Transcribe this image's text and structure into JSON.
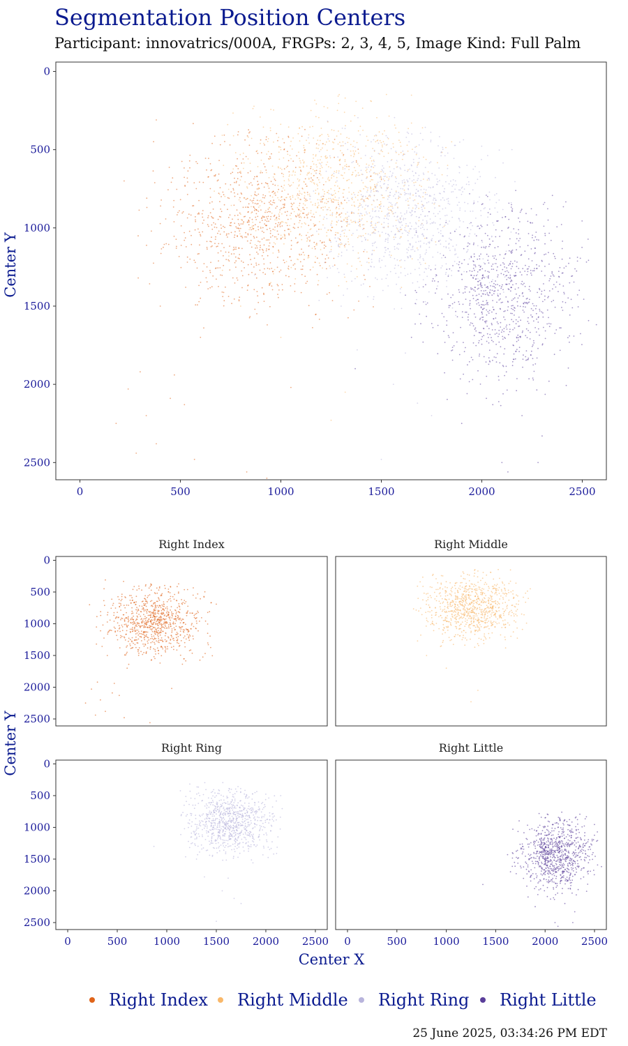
{
  "header": {
    "title": "Segmentation Position Centers",
    "subtitle": "Participant: innovatrics/000A, FRGPs: 2, 3, 4, 5, Image Kind: Full Palm"
  },
  "footer": {
    "timestamp": "25 June 2025, 03:34:26 PM EDT"
  },
  "colors": {
    "axis_text": "#1a1a9a",
    "axis_title": "#0a1a8f",
    "Right Index": "#e0641a",
    "Right Middle": "#f9b86a",
    "Right Ring": "#b8b4dc",
    "Right Little": "#5a3e9a"
  },
  "chart_data": [
    {
      "type": "scatter",
      "panel": "combined",
      "xlabel": "",
      "ylabel": "Center Y",
      "xlim": [
        -120,
        2620
      ],
      "ylim": [
        -60,
        2610
      ],
      "y_reversed": true,
      "x_ticks": [
        0,
        500,
        1000,
        1500,
        2000,
        2500
      ],
      "y_ticks": [
        0,
        500,
        1000,
        1500,
        2000,
        2500
      ],
      "grid": false,
      "series_ref": [
        "Right Index",
        "Right Middle",
        "Right Ring",
        "Right Little"
      ]
    },
    {
      "type": "scatter",
      "panel": "facets",
      "facet_titles": [
        "Right Index",
        "Right Middle",
        "Right Ring",
        "Right Little"
      ],
      "xlabel": "Center X",
      "ylabel": "Center Y",
      "xlim": [
        -120,
        2620
      ],
      "ylim": [
        -60,
        2610
      ],
      "y_reversed": true,
      "x_ticks": [
        0,
        500,
        1000,
        1500,
        2000,
        2500
      ],
      "y_ticks": [
        0,
        500,
        1000,
        1500,
        2000,
        2500
      ],
      "grid": false,
      "legend_position": "bottom"
    },
    {
      "type": "scatter",
      "series": [
        {
          "name": "Right Index",
          "n": 850,
          "center": [
            870,
            980
          ],
          "spread": [
            230,
            260
          ],
          "outliers": [
            [
              180,
              2250
            ],
            [
              240,
              2030
            ],
            [
              300,
              1920
            ],
            [
              330,
              2200
            ],
            [
              380,
              2380
            ],
            [
              470,
              1940
            ],
            [
              520,
              2130
            ],
            [
              400,
              1500
            ],
            [
              290,
              1320
            ],
            [
              220,
              700
            ],
            [
              380,
              310
            ],
            [
              600,
              1700
            ],
            [
              1050,
              2020
            ],
            [
              930,
              2600
            ],
            [
              570,
              2480
            ],
            [
              830,
              2560
            ],
            [
              280,
              2440
            ],
            [
              450,
              2090
            ]
          ]
        },
        {
          "name": "Right Middle",
          "n": 850,
          "center": [
            1260,
            760
          ],
          "spread": [
            230,
            240
          ],
          "outliers": [
            [
              1650,
              330
            ],
            [
              1320,
              170
            ],
            [
              1000,
              500
            ],
            [
              800,
              1500
            ],
            [
              1250,
              2230
            ],
            [
              1320,
              2050
            ],
            [
              1000,
              1700
            ],
            [
              1600,
              1380
            ],
            [
              950,
              1350
            ],
            [
              1830,
              600
            ],
            [
              1150,
              250
            ],
            [
              1850,
              450
            ]
          ]
        },
        {
          "name": "Right Ring",
          "n": 850,
          "center": [
            1640,
            930
          ],
          "spread": [
            210,
            250
          ],
          "outliers": [
            [
              1280,
              700
            ],
            [
              1250,
              1150
            ],
            [
              1300,
              1500
            ],
            [
              1620,
              1800
            ],
            [
              1750,
              2200
            ],
            [
              1500,
              2480
            ],
            [
              1380,
              1780
            ],
            [
              1900,
              1300
            ],
            [
              2150,
              500
            ],
            [
              870,
              1300
            ],
            [
              1560,
              2000
            ],
            [
              1680,
              2120
            ]
          ]
        },
        {
          "name": "Right Little",
          "n": 850,
          "center": [
            2100,
            1450
          ],
          "spread": [
            170,
            270
          ],
          "outliers": [
            [
              1620,
              1430
            ],
            [
              1650,
              1700
            ],
            [
              1730,
              1480
            ],
            [
              2100,
              2500
            ],
            [
              2130,
              2560
            ],
            [
              2070,
              2610
            ],
            [
              2280,
              2500
            ],
            [
              2300,
              2330
            ],
            [
              1900,
              2250
            ],
            [
              2330,
              950
            ],
            [
              2000,
              850
            ],
            [
              1370,
              1900
            ],
            [
              2400,
              1200
            ],
            [
              2200,
              2200
            ]
          ]
        }
      ]
    }
  ],
  "legend": {
    "items": [
      {
        "label": "Right Index",
        "color": "#e0641a"
      },
      {
        "label": "Right Middle",
        "color": "#f9b86a"
      },
      {
        "label": "Right Ring",
        "color": "#b8b4dc"
      },
      {
        "label": "Right Little",
        "color": "#5a3e9a"
      }
    ]
  }
}
